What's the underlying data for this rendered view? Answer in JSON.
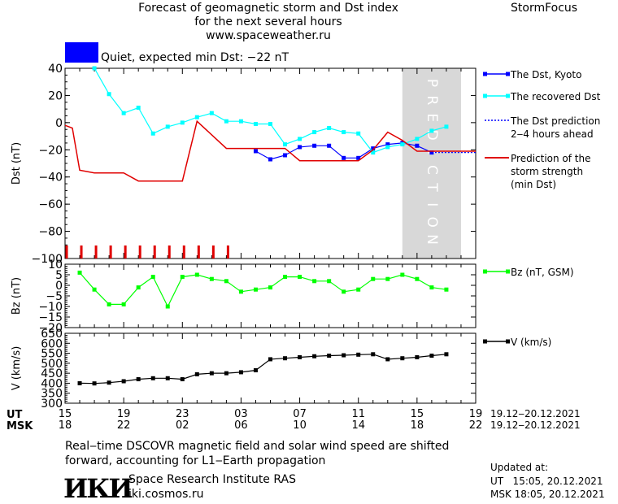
{
  "header": {
    "title_lines": [
      "Forecast of geomagnetic storm and Dst index",
      "for the next several hours",
      "www.spaceweather.ru"
    ],
    "brand": "StormFocus",
    "status_text": "Quiet, expected min Dst: −22 nT",
    "status_color": "#0000ff"
  },
  "colors": {
    "dst_kyoto": "#0000ff",
    "dst_recovered": "#00ffff",
    "dst_prediction": "#0000ff",
    "storm_strength": "#e00000",
    "bz": "#00ff00",
    "v": "#000000",
    "prediction_band": "#d8d8d8"
  },
  "prediction_band_label": "PREDICTION",
  "time_axis": {
    "ut_label": "UT",
    "msk_label": "MSK",
    "ut_ticks": [
      "15",
      "19",
      "23",
      "03",
      "07",
      "11",
      "15",
      "19"
    ],
    "msk_ticks": [
      "18",
      "22",
      "02",
      "06",
      "10",
      "14",
      "18",
      "22"
    ],
    "ut_range": "19.12‒20.12.2021",
    "msk_range": "19.12‒20.12.2021"
  },
  "chart_data": [
    {
      "type": "line",
      "ylabel": "Dst (nT)",
      "ylim": [
        -100,
        40
      ],
      "yticks": [
        40,
        20,
        0,
        -20,
        -40,
        -60,
        -80,
        -100
      ],
      "xlim": [
        15,
        43
      ],
      "prediction_band": [
        38,
        42
      ],
      "series": [
        {
          "name": "The Dst, Kyoto",
          "x": [
            28,
            29,
            30,
            31,
            32,
            33,
            34,
            35,
            36,
            37,
            38,
            39,
            40,
            41
          ],
          "y": [
            -21,
            -27,
            -24,
            -18,
            -17,
            -17,
            -26,
            -26,
            -19,
            -16,
            -15,
            -17,
            -22,
            null
          ]
        },
        {
          "name": "The recovered Dst",
          "x": [
            15,
            16,
            17,
            18,
            19,
            20,
            21,
            22,
            23,
            24,
            25,
            26,
            27,
            28,
            29,
            30,
            31,
            32,
            33,
            34,
            35,
            36,
            37,
            38,
            39,
            40,
            41
          ],
          "y": [
            null,
            null,
            40,
            21,
            7,
            11,
            -8,
            -3,
            0,
            4,
            7,
            1,
            1,
            -1,
            -1,
            -16,
            -12,
            -7,
            -4,
            -7,
            -8,
            -22,
            -18,
            -16,
            -12,
            -6,
            -3
          ]
        },
        {
          "name": "The Dst prediction\n2‒4 hours ahead",
          "x": [
            40,
            43
          ],
          "y": [
            -22,
            -22
          ]
        },
        {
          "name": "Prediction of the\nstorm strength\n(min Dst)",
          "x": [
            15,
            15.5,
            16,
            17,
            18,
            19,
            20,
            21,
            22,
            23,
            24,
            25,
            26,
            27,
            28,
            29,
            30,
            31,
            32,
            33,
            34,
            35,
            36,
            37,
            38,
            39,
            40,
            41,
            42,
            43
          ],
          "y": [
            -2,
            -4,
            -35,
            -37,
            -37,
            -37,
            -43,
            -43,
            -43,
            -43,
            1,
            -9,
            -19,
            -19,
            -19,
            -19,
            -19,
            -28,
            -28,
            -28,
            -28,
            -28,
            -20,
            -7,
            -13,
            -21,
            -21,
            -21,
            -21,
            -21
          ]
        }
      ],
      "storm_markers_x": [
        15,
        16,
        17,
        18,
        19,
        20,
        21,
        22,
        23,
        24,
        25,
        26
      ]
    },
    {
      "type": "line",
      "ylabel": "Bz (nT)",
      "ylim": [
        -20,
        10
      ],
      "yticks": [
        10,
        5,
        0,
        -5,
        -10,
        -15,
        -20
      ],
      "series": [
        {
          "name": "Bz (nT, GSM)",
          "x": [
            16,
            17,
            18,
            19,
            20,
            21,
            22,
            23,
            24,
            25,
            26,
            27,
            28,
            29,
            30,
            31,
            32,
            33,
            34,
            35,
            36,
            37,
            38,
            39,
            40,
            41
          ],
          "y": [
            6,
            -2,
            -9,
            -9,
            -1,
            4,
            -10,
            4,
            5,
            3,
            2,
            -3,
            -2,
            -1,
            4,
            4,
            2,
            2,
            -3,
            -2,
            3,
            3,
            5,
            3,
            -1,
            -2
          ]
        }
      ]
    },
    {
      "type": "line",
      "ylabel": "V (km/s)",
      "ylim": [
        300,
        650
      ],
      "yticks": [
        650,
        600,
        550,
        500,
        450,
        400,
        350,
        300
      ],
      "series": [
        {
          "name": "V (km/s)",
          "x": [
            16,
            17,
            18,
            19,
            20,
            21,
            22,
            23,
            24,
            25,
            26,
            27,
            28,
            29,
            30,
            31,
            32,
            33,
            34,
            35,
            36,
            37,
            38,
            39,
            40,
            41
          ],
          "y": [
            400,
            399,
            403,
            410,
            420,
            425,
            425,
            420,
            445,
            450,
            450,
            455,
            465,
            520,
            525,
            530,
            535,
            538,
            540,
            543,
            545,
            520,
            525,
            530,
            538,
            545
          ]
        }
      ]
    }
  ],
  "legends": {
    "dst_kyoto": "The Dst, Kyoto",
    "dst_recovered": "The recovered Dst",
    "dst_prediction": "The Dst prediction\n2‒4 hours ahead",
    "storm_strength": "Prediction of the\nstorm strength\n(min Dst)",
    "bz": "Bz (nT, GSM)",
    "v": "V (km/s)"
  },
  "footer": {
    "note": "Real‒time DSCOVR magnetic field and solar wind speed are shifted\nforward, accounting for L1‒Earth propagation",
    "logo_text": "ИКИ",
    "institute": "Space Research Institute RAS",
    "site": "iki.cosmos.ru",
    "updated_label": "Updated at:",
    "updated_ut": "UT   15:05, 20.12.2021",
    "updated_msk": "MSK 18:05, 20.12.2021"
  }
}
